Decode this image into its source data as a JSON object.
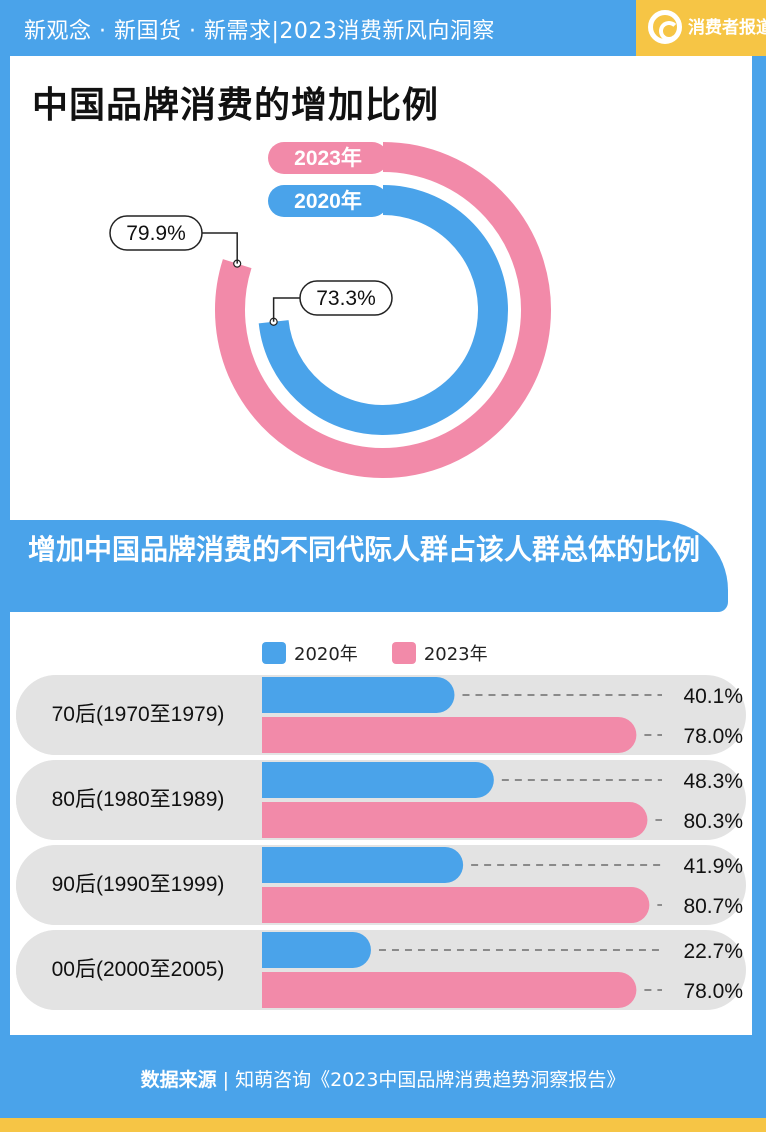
{
  "header": {
    "text": "新观念 · 新国货 · 新需求|2023消费新风向洞察",
    "logo_text": "消费者报道"
  },
  "section1": {
    "title": "中国品牌消费的增加比例"
  },
  "section2": {
    "title": "增加中国品牌消费的不同代际人群占该人群总体的比例"
  },
  "colors": {
    "c2020": "#4aa3ea",
    "c2023": "#f28aa9",
    "bg": "#4aa3ea",
    "accent": "#f6c545"
  },
  "chart_data": [
    {
      "type": "pie",
      "series": [
        {
          "name": "2023年",
          "value": 79.9,
          "label": "79.9%"
        },
        {
          "name": "2020年",
          "value": 73.3,
          "label": "73.3%"
        }
      ]
    },
    {
      "type": "bar",
      "legend": [
        "2020年",
        "2023年"
      ],
      "categories": [
        "70后(1970至1979)",
        "80后(1980至1989)",
        "90后(1990至1999)",
        "00后(2000至2005)"
      ],
      "series": [
        {
          "name": "2020年",
          "values": [
            40.1,
            48.3,
            41.9,
            22.7
          ],
          "labels": [
            "40.1%",
            "48.3%",
            "41.9%",
            "22.7%"
          ]
        },
        {
          "name": "2023年",
          "values": [
            78.0,
            80.3,
            80.7,
            78.0
          ],
          "labels": [
            "78.0%",
            "80.3%",
            "80.7%",
            "78.0%"
          ]
        }
      ]
    }
  ],
  "footer": {
    "source_label": "数据来源",
    "source_text": "| 知萌咨询《2023中国品牌消费趋势洞察报告》"
  }
}
